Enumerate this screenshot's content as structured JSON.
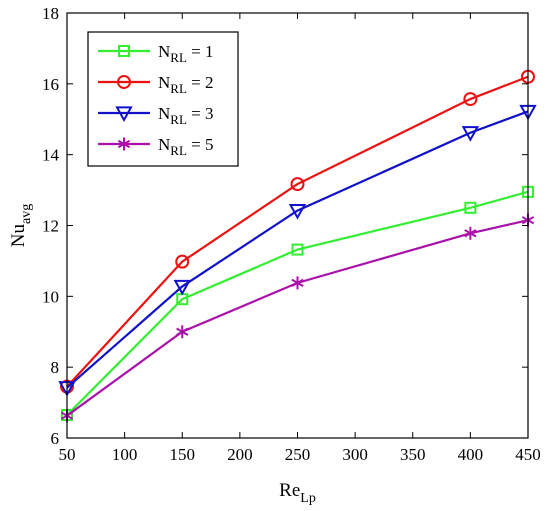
{
  "chart_data": {
    "type": "line",
    "title": "",
    "xlabel": {
      "base": "Re",
      "sub": "Lp"
    },
    "ylabel": {
      "base": "Nu",
      "sub": "avg"
    },
    "xlim": [
      50,
      450
    ],
    "ylim": [
      6,
      18
    ],
    "xticks": [
      50,
      100,
      150,
      200,
      250,
      300,
      350,
      400,
      450
    ],
    "yticks": [
      6,
      8,
      10,
      12,
      14,
      16,
      18
    ],
    "grid": false,
    "legend_position": "top-left",
    "x": [
      50,
      150,
      250,
      400,
      450
    ],
    "series": [
      {
        "name_base": "N",
        "name_sub": "RL",
        "name_suffix": " = 1",
        "color": "#33ee33",
        "marker": "square",
        "values": [
          6.65,
          9.92,
          11.32,
          12.5,
          12.95
        ]
      },
      {
        "name_base": "N",
        "name_sub": "RL",
        "name_suffix": " = 2",
        "color": "#ee1111",
        "marker": "circle",
        "values": [
          7.45,
          10.98,
          13.17,
          15.57,
          16.2
        ]
      },
      {
        "name_base": "N",
        "name_sub": "RL",
        "name_suffix": " = 3",
        "color": "#1111cc",
        "marker": "triangle-down",
        "values": [
          7.42,
          10.28,
          12.42,
          14.62,
          15.22
        ]
      },
      {
        "name_base": "N",
        "name_sub": "RL",
        "name_suffix": " = 5",
        "color": "#aa11aa",
        "marker": "asterisk",
        "values": [
          6.63,
          9.0,
          10.38,
          11.78,
          12.15
        ]
      }
    ]
  }
}
